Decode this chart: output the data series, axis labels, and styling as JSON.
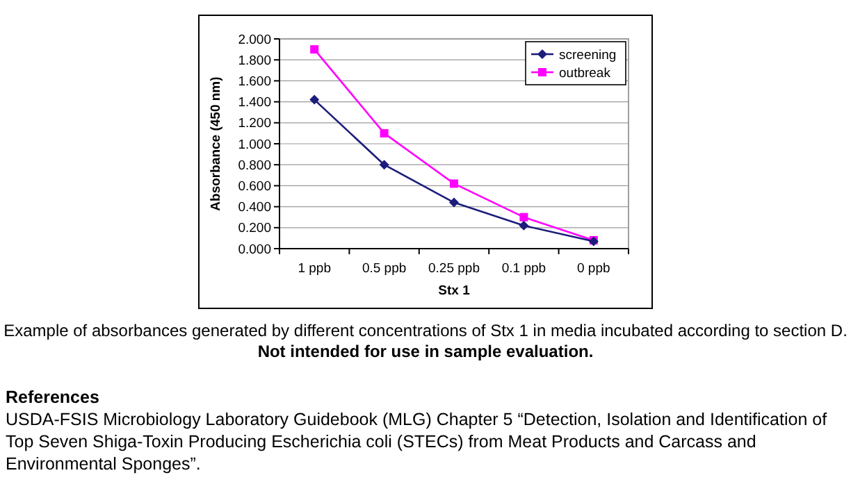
{
  "chart_data": {
    "type": "line",
    "xlabel": "Stx 1",
    "ylabel": "Absorbance (450 nm)",
    "categories": [
      "1 ppb",
      "0.5 ppb",
      "0.25 ppb",
      "0.1 ppb",
      "0 ppb"
    ],
    "series": [
      {
        "name": "screening",
        "color": "#1c1c7c",
        "marker": "diamond",
        "values": [
          1.42,
          0.8,
          0.44,
          0.22,
          0.07
        ]
      },
      {
        "name": "outbreak",
        "color": "#ff00ff",
        "marker": "square",
        "values": [
          1.9,
          1.1,
          0.62,
          0.3,
          0.08
        ]
      }
    ],
    "ylim": [
      0,
      2
    ],
    "yticks": [
      {
        "value": 0,
        "label": "0.000"
      },
      {
        "value": 0.2,
        "label": "0.200"
      },
      {
        "value": 0.4,
        "label": "0.400"
      },
      {
        "value": 0.6,
        "label": "0.600"
      },
      {
        "value": 0.8,
        "label": "0.800"
      },
      {
        "value": 1,
        "label": "1.000"
      },
      {
        "value": 1.2,
        "label": "1.200"
      },
      {
        "value": 1.4,
        "label": "1.400"
      },
      {
        "value": 1.6,
        "label": "1.600"
      },
      {
        "value": 1.8,
        "label": "1.800"
      },
      {
        "value": 2,
        "label": "2.000"
      }
    ],
    "grid": "y",
    "legend": "top right",
    "line_style": "solid",
    "annotations": [
      "Example of absorbances generated by different concentrations of Stx 1 in media incubated according to section D.",
      "Not intended for use in sample evaluation.",
      "References",
      "USDA-FSIS Microbiology Laboratory Guidebook (MLG) Chapter 5 “Detection, Isolation and Identification of Top Seven Shiga-Toxin Producing Escherichia coli (STECs) from Meat Products and Carcass and Environmental Sponges”."
    ]
  }
}
